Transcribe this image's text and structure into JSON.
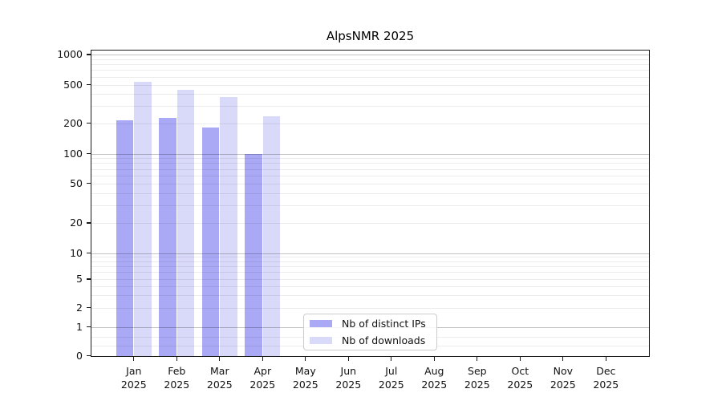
{
  "chart_data": {
    "type": "bar",
    "title": "AlpsNMR 2025",
    "categories": [
      "Jan 2025",
      "Feb 2025",
      "Mar 2025",
      "Apr 2025",
      "May 2025",
      "Jun 2025",
      "Jul 2025",
      "Aug 2025",
      "Sep 2025",
      "Oct 2025",
      "Nov 2025",
      "Dec 2025"
    ],
    "series": [
      {
        "name": "Nb of distinct IPs",
        "color": "#a9a9f5",
        "values": [
          215,
          225,
          180,
          100,
          null,
          null,
          null,
          null,
          null,
          null,
          null,
          null
        ]
      },
      {
        "name": "Nb of downloads",
        "color": "#d9d9f9",
        "values": [
          530,
          440,
          370,
          235,
          null,
          null,
          null,
          null,
          null,
          null,
          null,
          null
        ]
      }
    ],
    "y_ticks": [
      0,
      1,
      2,
      5,
      10,
      20,
      50,
      100,
      200,
      500,
      1000
    ],
    "ylim": [
      0,
      1000
    ],
    "y_scale": "log-like with 0 baseline",
    "xlabel": "",
    "ylabel": "",
    "grid": "horizontal major and minor gridlines, drawn over bars",
    "legend_position": "lower center-left inside plot"
  }
}
